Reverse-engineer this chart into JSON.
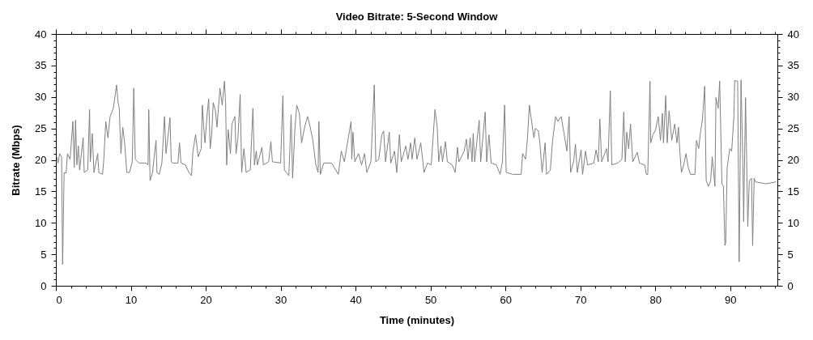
{
  "chart_data": {
    "type": "line",
    "title": "Video Bitrate: 5-Second Window",
    "xlabel": "Time (minutes)",
    "ylabel": "Bitrate (Mbps)",
    "x": [
      0.1,
      0.3,
      0.5,
      0.76,
      0.9,
      1.1,
      1.37,
      1.55,
      1.9,
      2.27,
      2.45,
      2.63,
      2.8,
      3.0,
      3.17,
      3.64,
      3.78,
      4.25,
      4.5,
      4.6,
      4.86,
      5.08,
      5.58,
      5.73,
      6.23,
      6.4,
      6.66,
      6.95,
      7.24,
      7.67,
      8.1,
      8.3,
      8.46,
      8.68,
      8.93,
      9.18,
      9.47,
      9.83,
      10.2,
      10.4,
      10.6,
      11.1,
      12.0,
      12.3,
      12.4,
      12.57,
      12.9,
      13.36,
      13.5,
      13.8,
      14.15,
      14.5,
      14.7,
      14.87,
      15.23,
      15.4,
      15.6,
      16.3,
      16.5,
      16.7,
      17.3,
      17.75,
      18.1,
      18.3,
      18.65,
      19.0,
      19.4,
      19.55,
      19.73,
      19.9,
      20.2,
      20.4,
      20.6,
      20.8,
      21.0,
      21.3,
      21.5,
      21.9,
      22.2,
      22.5,
      22.65,
      22.8,
      23.0,
      23.3,
      23.5,
      23.9,
      24.05,
      24.3,
      24.6,
      24.8,
      25.1,
      25.4,
      25.95,
      26.3,
      26.5,
      26.75,
      26.9,
      27.5,
      27.7,
      28.4,
      28.7,
      28.9,
      30.0,
      30.3,
      30.5,
      31.1,
      31.4,
      31.6,
      31.9,
      32.15,
      32.5,
      32.8,
      33.2,
      33.6,
      33.95,
      34.3,
      34.7,
      35.0,
      35.1,
      35.3,
      35.75,
      36.8,
      37.7,
      38.1,
      38.5,
      39.4,
      39.5,
      39.65,
      39.9,
      40.4,
      40.8,
      41.2,
      41.5,
      42.05,
      42.5,
      42.7,
      43.1,
      43.5,
      43.75,
      44.0,
      44.5,
      44.7,
      45.2,
      45.5,
      45.85,
      46.1,
      46.7,
      47.0,
      47.35,
      47.55,
      47.9,
      48.2,
      48.7,
      49.15,
      49.6,
      50.1,
      50.6,
      50.9,
      51.1,
      51.4,
      51.6,
      52.0,
      52.25,
      52.9,
      53.3,
      53.6,
      53.8,
      54.5,
      54.8,
      55.0,
      55.3,
      55.55,
      55.7,
      55.9,
      56.5,
      56.7,
      57.3,
      57.5,
      57.8,
      58.1,
      58.8,
      59.3,
      59.6,
      59.9,
      60.1,
      61.0,
      62.1,
      62.3,
      62.7,
      62.95,
      63.2,
      63.5,
      63.8,
      64.0,
      64.4,
      64.6,
      64.9,
      65.3,
      65.5,
      66.0,
      66.3,
      66.7,
      67.0,
      67.45,
      67.8,
      68.2,
      68.5,
      68.7,
      69.1,
      69.35,
      69.6,
      70.1,
      70.3,
      70.7,
      70.97,
      71.8,
      72.1,
      72.4,
      72.6,
      72.85,
      73.5,
      73.7,
      74.0,
      74.2,
      75.0,
      75.55,
      75.8,
      76.0,
      76.2,
      76.45,
      76.7,
      77.0,
      77.6,
      77.9,
      78.6,
      78.8,
      79.0,
      79.3,
      79.4,
      79.7,
      80.05,
      80.4,
      80.7,
      80.95,
      81.1,
      81.4,
      81.6,
      81.85,
      82.2,
      82.6,
      82.9,
      83.1,
      83.3,
      83.5,
      83.8,
      84.1,
      84.4,
      84.7,
      85.3,
      85.5,
      85.8,
      86.0,
      86.3,
      86.6,
      86.8,
      87.1,
      87.4,
      87.6,
      87.97,
      88.1,
      88.4,
      88.6,
      88.9,
      89.1,
      89.3,
      89.4,
      89.6,
      89.95,
      90.2,
      90.5,
      90.6,
      91.0,
      91.2,
      91.45,
      91.7,
      91.8,
      92.05,
      92.2,
      92.35,
      92.55,
      92.85,
      93.0,
      93.2,
      93.4,
      94.8,
      96.1
    ],
    "series": [
      {
        "color": "#808080",
        "values": [
          20.5,
          19.5,
          21,
          20.5,
          3.4,
          18,
          17.9,
          21,
          20.1,
          26.1,
          18.8,
          26.3,
          19.2,
          22.2,
          18.4,
          23.5,
          18,
          18.4,
          28,
          19.7,
          24.2,
          18,
          21,
          18,
          17.7,
          20.1,
          26.1,
          23.5,
          26.9,
          28.2,
          31.9,
          29.1,
          28.2,
          21,
          25.2,
          22.7,
          18,
          18,
          19.7,
          31.4,
          20.1,
          19.5,
          19.5,
          19.2,
          28,
          16.7,
          18,
          23.1,
          18,
          17.7,
          19.5,
          26.9,
          21,
          22.7,
          26.7,
          19.7,
          19.5,
          19.5,
          22.7,
          19.5,
          19.2,
          18,
          17.5,
          21.4,
          24,
          20.5,
          21.8,
          28.7,
          25.2,
          22.7,
          27.4,
          29.7,
          21.8,
          24,
          29.1,
          27.8,
          25.2,
          31.4,
          28.7,
          32.5,
          29.1,
          19.2,
          24.8,
          21,
          25.7,
          26.9,
          21,
          23.5,
          30.4,
          18,
          21.8,
          18,
          18.4,
          28.2,
          19.2,
          21.4,
          19.2,
          22,
          19.2,
          19.7,
          22.9,
          19.7,
          19.5,
          30.2,
          18.4,
          17.5,
          27.2,
          17.1,
          24.8,
          28.7,
          27.4,
          22.7,
          25.2,
          26.9,
          25.2,
          23.1,
          19.2,
          18,
          26.1,
          17.7,
          19.5,
          19.5,
          17.7,
          21.4,
          19.7,
          26.1,
          20.1,
          24.4,
          19.7,
          21,
          19.2,
          21,
          18,
          19.7,
          31.9,
          19.7,
          20.1,
          24,
          24.6,
          19.7,
          24.4,
          19.5,
          21.4,
          18,
          24,
          19.7,
          22.2,
          20.1,
          22.7,
          20.1,
          23.5,
          20.1,
          22.7,
          18,
          19.5,
          19.2,
          28,
          25.2,
          19.7,
          22.2,
          19.7,
          22.9,
          19.7,
          19.2,
          18,
          22,
          19.7,
          21.4,
          23.3,
          20.1,
          23.5,
          19.7,
          24.2,
          19.7,
          26.3,
          19.7,
          27.6,
          19.7,
          24,
          19.5,
          19.2,
          17.7,
          19.7,
          28.7,
          18,
          17.7,
          17.7,
          21,
          20.1,
          23.5,
          28.7,
          26.1,
          23.5,
          25,
          24.6,
          22.7,
          18,
          22.7,
          17.7,
          18.4,
          23.1,
          26.9,
          26.1,
          26.9,
          24.4,
          21.4,
          26.9,
          18,
          19.7,
          22.5,
          18,
          21.6,
          17.7,
          21.4,
          19.2,
          19.5,
          21.6,
          19.7,
          26.5,
          19.7,
          21.8,
          19.7,
          31,
          19.2,
          19.5,
          20.1,
          27.6,
          19.7,
          24.4,
          21.8,
          25.7,
          19.7,
          21.2,
          19.5,
          19.2,
          17.7,
          17.7,
          32.5,
          22.7,
          24,
          24.8,
          26.9,
          23.1,
          27.4,
          22.7,
          30.2,
          22.7,
          27.8,
          23.1,
          25.7,
          22.7,
          25.2,
          21,
          18,
          19.2,
          21,
          18.8,
          17.7,
          17.7,
          23.1,
          21.8,
          24,
          26.5,
          31.7,
          16.7,
          15.8,
          16.7,
          20.5,
          15.8,
          29.9,
          28.2,
          32.5,
          16.2,
          15.8,
          6.4,
          6.8,
          18.8,
          21.8,
          21.4,
          26.9,
          32.6,
          32.5,
          3.8,
          32.7,
          19.2,
          10.2,
          29.9,
          20.1,
          9.4,
          16.7,
          17.1,
          6.4,
          17.1,
          16.5,
          16.2,
          16.5
        ]
      }
    ],
    "xlim": [
      0,
      96.3
    ],
    "xticks": [
      0,
      {
        "value": 2,
        "label": null
      },
      {
        "value": 4,
        "label": null
      },
      {
        "value": 6,
        "label": null
      },
      {
        "value": 8,
        "label": null
      },
      10,
      {
        "value": 12,
        "label": null
      },
      {
        "value": 14,
        "label": null
      },
      {
        "value": 16,
        "label": null
      },
      {
        "value": 18,
        "label": null
      },
      20,
      {
        "value": 22,
        "label": null
      },
      {
        "value": 24,
        "label": null
      },
      {
        "value": 26,
        "label": null
      },
      {
        "value": 28,
        "label": null
      },
      30,
      {
        "value": 32,
        "label": null
      },
      {
        "value": 34,
        "label": null
      },
      {
        "value": 36,
        "label": null
      },
      {
        "value": 38,
        "label": null
      },
      40,
      {
        "value": 42,
        "label": null
      },
      {
        "value": 44,
        "label": null
      },
      {
        "value": 46,
        "label": null
      },
      {
        "value": 48,
        "label": null
      },
      50,
      {
        "value": 52,
        "label": null
      },
      {
        "value": 54,
        "label": null
      },
      {
        "value": 56,
        "label": null
      },
      {
        "value": 58,
        "label": null
      },
      60,
      {
        "value": 62,
        "label": null
      },
      {
        "value": 64,
        "label": null
      },
      {
        "value": 66,
        "label": null
      },
      {
        "value": 68,
        "label": null
      },
      70,
      {
        "value": 72,
        "label": null
      },
      {
        "value": 74,
        "label": null
      },
      {
        "value": 76,
        "label": null
      },
      {
        "value": 78,
        "label": null
      },
      80,
      {
        "value": 82,
        "label": null
      },
      {
        "value": 84,
        "label": null
      },
      {
        "value": 86,
        "label": null
      },
      {
        "value": 88,
        "label": null
      },
      90,
      {
        "value": 92,
        "label": null
      },
      {
        "value": 94,
        "label": null
      },
      {
        "value": 96,
        "label": null
      }
    ],
    "ylim": [
      0,
      40
    ],
    "yticks": [
      0,
      {
        "value": 1,
        "label": null
      },
      {
        "value": 2,
        "label": null
      },
      {
        "value": 3,
        "label": null
      },
      {
        "value": 4,
        "label": null
      },
      5,
      {
        "value": 6,
        "label": null
      },
      {
        "value": 7,
        "label": null
      },
      {
        "value": 8,
        "label": null
      },
      {
        "value": 9,
        "label": null
      },
      10,
      {
        "value": 11,
        "label": null
      },
      {
        "value": 12,
        "label": null
      },
      {
        "value": 13,
        "label": null
      },
      {
        "value": 14,
        "label": null
      },
      15,
      {
        "value": 16,
        "label": null
      },
      {
        "value": 17,
        "label": null
      },
      {
        "value": 18,
        "label": null
      },
      {
        "value": 19,
        "label": null
      },
      20,
      {
        "value": 21,
        "label": null
      },
      {
        "value": 22,
        "label": null
      },
      {
        "value": 23,
        "label": null
      },
      {
        "value": 24,
        "label": null
      },
      25,
      {
        "value": 26,
        "label": null
      },
      {
        "value": 27,
        "label": null
      },
      {
        "value": 28,
        "label": null
      },
      {
        "value": 29,
        "label": null
      },
      30,
      {
        "value": 31,
        "label": null
      },
      {
        "value": 32,
        "label": null
      },
      {
        "value": 33,
        "label": null
      },
      {
        "value": 34,
        "label": null
      },
      35,
      {
        "value": 36,
        "label": null
      },
      {
        "value": 37,
        "label": null
      },
      {
        "value": 38,
        "label": null
      },
      {
        "value": 39,
        "label": null
      },
      40
    ],
    "y2lim": [
      0,
      40
    ],
    "y2ticks": [
      0,
      {
        "value": 1,
        "label": null
      },
      {
        "value": 2,
        "label": null
      },
      {
        "value": 3,
        "label": null
      },
      {
        "value": 4,
        "label": null
      },
      5,
      {
        "value": 6,
        "label": null
      },
      {
        "value": 7,
        "label": null
      },
      {
        "value": 8,
        "label": null
      },
      {
        "value": 9,
        "label": null
      },
      10,
      {
        "value": 11,
        "label": null
      },
      {
        "value": 12,
        "label": null
      },
      {
        "value": 13,
        "label": null
      },
      {
        "value": 14,
        "label": null
      },
      15,
      {
        "value": 16,
        "label": null
      },
      {
        "value": 17,
        "label": null
      },
      {
        "value": 18,
        "label": null
      },
      {
        "value": 19,
        "label": null
      },
      20,
      {
        "value": 21,
        "label": null
      },
      {
        "value": 22,
        "label": null
      },
      {
        "value": 23,
        "label": null
      },
      {
        "value": 24,
        "label": null
      },
      25,
      {
        "value": 26,
        "label": null
      },
      {
        "value": 27,
        "label": null
      },
      {
        "value": 28,
        "label": null
      },
      {
        "value": 29,
        "label": null
      },
      30,
      {
        "value": 31,
        "label": null
      },
      {
        "value": 32,
        "label": null
      },
      {
        "value": 33,
        "label": null
      },
      {
        "value": 34,
        "label": null
      },
      35,
      {
        "value": 36,
        "label": null
      },
      {
        "value": 37,
        "label": null
      },
      {
        "value": 38,
        "label": null
      },
      {
        "value": 39,
        "label": null
      },
      40
    ],
    "grid": false,
    "marker": "none",
    "line_style": "solid"
  }
}
